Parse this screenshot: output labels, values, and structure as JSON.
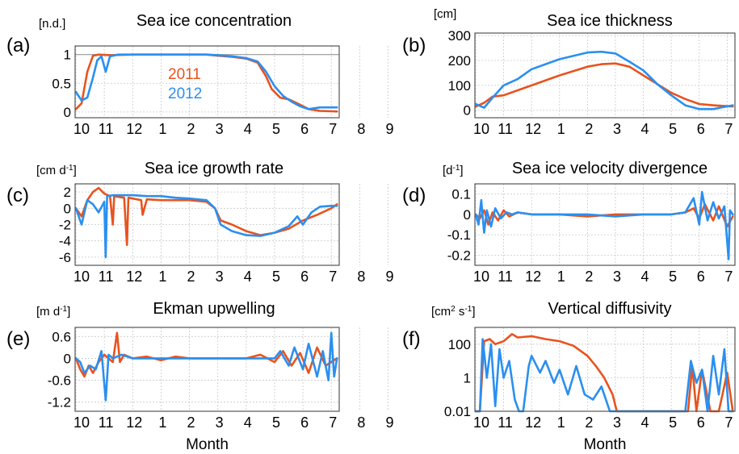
{
  "colors": {
    "y2011": "#e8531e",
    "y2012": "#2a8ff0",
    "grid": "#c8c8c8",
    "frame": "#555555"
  },
  "xlabel": "Month",
  "months": [
    "10",
    "11",
    "12",
    "1",
    "2",
    "3",
    "4",
    "5",
    "6",
    "7",
    "8",
    "9"
  ],
  "chart_data": [
    {
      "id": "a",
      "type": "line",
      "panel_label": "(a)",
      "unit": "[n.d.]",
      "title": "Sea ice concentration",
      "ylim": [
        -0.1,
        1.15
      ],
      "yticks": [
        "1",
        "0.5",
        "0"
      ],
      "ytick_values": [
        1,
        0.5,
        0
      ],
      "ref_line": 1,
      "legend": [
        "2011",
        "2012"
      ],
      "xlabel": "",
      "series": [
        {
          "name": "2011",
          "x": [
            0,
            0.2,
            0.4,
            0.6,
            0.8,
            1.2,
            2,
            3,
            4,
            4.6,
            5,
            5.5,
            6,
            6.4,
            6.7,
            6.9,
            7.2,
            7.5,
            7.8,
            8.2,
            8.6,
            9.2
          ],
          "values": [
            0.05,
            0.15,
            0.7,
            0.98,
            1,
            0.99,
            1,
            1,
            1,
            1,
            0.98,
            0.96,
            0.93,
            0.86,
            0.62,
            0.4,
            0.25,
            0.22,
            0.15,
            0.05,
            0.02,
            0.01
          ]
        },
        {
          "name": "2012",
          "x": [
            0,
            0.2,
            0.4,
            0.6,
            0.75,
            0.9,
            1.05,
            1.2,
            1.5,
            2,
            3,
            4,
            4.6,
            5,
            5.5,
            6,
            6.4,
            6.7,
            7,
            7.3,
            7.6,
            7.9,
            8.2,
            8.6,
            9.2
          ],
          "values": [
            0.35,
            0.2,
            0.25,
            0.6,
            0.9,
            0.97,
            0.7,
            0.97,
            1,
            1,
            1,
            1,
            1,
            0.99,
            0.97,
            0.94,
            0.88,
            0.7,
            0.45,
            0.28,
            0.18,
            0.1,
            0.05,
            0.08,
            0.08
          ]
        }
      ]
    },
    {
      "id": "b",
      "type": "line",
      "panel_label": "(b)",
      "unit": "[cm]",
      "title": "Sea ice thickness",
      "ylim": [
        -30,
        310
      ],
      "yticks": [
        "300",
        "200",
        "100",
        "0"
      ],
      "ytick_values": [
        300,
        200,
        100,
        0
      ],
      "xlabel": "",
      "series": [
        {
          "name": "2011",
          "x": [
            0,
            0.3,
            0.6,
            1,
            1.5,
            2,
            3,
            4,
            4.5,
            5,
            5.5,
            6,
            6.5,
            7,
            7.5,
            8,
            8.5,
            9.2
          ],
          "values": [
            15,
            30,
            55,
            60,
            80,
            100,
            140,
            175,
            185,
            188,
            175,
            140,
            105,
            70,
            45,
            25,
            20,
            15
          ]
        },
        {
          "name": "2012",
          "x": [
            0,
            0.3,
            0.6,
            1,
            1.5,
            2,
            3,
            4,
            4.5,
            5,
            5.5,
            6,
            6.5,
            7,
            7.5,
            8,
            8.5,
            9.2
          ],
          "values": [
            25,
            10,
            50,
            100,
            125,
            165,
            205,
            232,
            235,
            228,
            195,
            160,
            105,
            60,
            20,
            5,
            5,
            20
          ]
        }
      ]
    },
    {
      "id": "c",
      "type": "line",
      "panel_label": "(c)",
      "unit": "[cm d-1]",
      "title": "Sea ice growth rate",
      "ylim": [
        -7,
        3
      ],
      "yticks": [
        "2",
        "0",
        "-2",
        "-4",
        "-6"
      ],
      "ytick_values": [
        2,
        0,
        -2,
        -4,
        -6
      ],
      "xlabel": "",
      "series": [
        {
          "name": "2011",
          "x": [
            0,
            0.2,
            0.4,
            0.6,
            0.8,
            1,
            1.2,
            1.3,
            1.35,
            1.5,
            1.7,
            1.8,
            1.85,
            2,
            2.3,
            2.35,
            2.5,
            3,
            4,
            4.6,
            4.9,
            5.1,
            5.5,
            6,
            6.5,
            7,
            7.5,
            8,
            8.5,
            9,
            9.2
          ],
          "values": [
            0,
            -1,
            1,
            2,
            2.5,
            1.8,
            1.5,
            -2,
            1.5,
            1.4,
            1.3,
            -4.5,
            1.3,
            1.2,
            1,
            -0.8,
            1.1,
            1,
            1,
            0.8,
            0,
            -1.5,
            -2,
            -2.8,
            -3.3,
            -3,
            -2.5,
            -1.5,
            -0.8,
            0,
            0.5
          ]
        },
        {
          "name": "2012",
          "x": [
            0,
            0.2,
            0.4,
            0.6,
            0.8,
            1,
            1.05,
            1.1,
            1.3,
            1.5,
            2,
            2.5,
            3,
            3.5,
            4,
            4.6,
            4.9,
            5.1,
            5.5,
            6,
            6.5,
            7,
            7.5,
            7.8,
            8,
            8.3,
            8.6,
            9,
            9.2
          ],
          "values": [
            0,
            -2,
            1,
            0.5,
            -0.5,
            0.8,
            -6,
            1.5,
            1.6,
            1.6,
            1.6,
            1.5,
            1.5,
            1.3,
            1.2,
            1,
            0,
            -2,
            -2.8,
            -3.3,
            -3.4,
            -3,
            -2.2,
            -1,
            -2,
            -0.5,
            0.2,
            0.3,
            0.3
          ]
        }
      ]
    },
    {
      "id": "d",
      "type": "line",
      "panel_label": "(d)",
      "unit": "[d-1]",
      "title": "Sea ice velocity divergence",
      "ylim": [
        -0.25,
        0.15
      ],
      "yticks": [
        "0.1",
        "0",
        "-0.1",
        "-0.2"
      ],
      "ytick_values": [
        0.1,
        0,
        -0.1,
        -0.2
      ],
      "xlabel": "",
      "series": [
        {
          "name": "2011",
          "x": [
            0,
            0.15,
            0.3,
            0.45,
            0.6,
            0.8,
            1,
            1.2,
            1.5,
            2,
            3,
            4,
            5,
            6,
            7,
            7.5,
            7.8,
            8,
            8.2,
            8.5,
            8.7,
            9,
            9.2
          ],
          "values": [
            0,
            -0.02,
            0.02,
            -0.05,
            0.01,
            -0.03,
            0.02,
            -0.01,
            0.01,
            0,
            0,
            -0.01,
            0,
            0,
            0,
            0.01,
            0.03,
            -0.02,
            0.05,
            -0.03,
            0.04,
            -0.06,
            -0.01
          ]
        },
        {
          "name": "2012",
          "x": [
            0,
            0.1,
            0.2,
            0.3,
            0.4,
            0.55,
            0.7,
            0.9,
            1.1,
            1.3,
            1.5,
            2,
            3,
            4,
            5,
            6,
            7,
            7.5,
            7.8,
            8,
            8.1,
            8.3,
            8.5,
            8.7,
            8.9,
            9.05,
            9.1,
            9.2
          ],
          "values": [
            0,
            -0.05,
            0.07,
            -0.09,
            0.02,
            -0.06,
            0.03,
            -0.02,
            0.01,
            0,
            0.01,
            0,
            0,
            0,
            -0.01,
            0,
            0,
            0.01,
            0.08,
            -0.05,
            0.11,
            -0.03,
            0.06,
            -0.02,
            0.04,
            -0.22,
            0.02,
            0
          ]
        }
      ]
    },
    {
      "id": "e",
      "type": "line",
      "panel_label": "(e)",
      "unit": "[m d-1]",
      "title": "Ekman upwelling",
      "ylim": [
        -1.45,
        0.85
      ],
      "yticks": [
        "0.6",
        "0",
        "-0.6",
        "-1.2"
      ],
      "ytick_values": [
        0.6,
        0,
        -0.6,
        -1.2
      ],
      "xlabel": "Month",
      "series": [
        {
          "name": "2011",
          "x": [
            0,
            0.15,
            0.3,
            0.45,
            0.6,
            0.8,
            1,
            1.3,
            1.45,
            1.55,
            1.7,
            2,
            2.5,
            3,
            3.5,
            4,
            5,
            6,
            6.5,
            7,
            7.3,
            7.6,
            7.9,
            8.2,
            8.5,
            8.8,
            9.2
          ],
          "values": [
            0,
            -0.3,
            -0.5,
            -0.2,
            -0.4,
            -0.1,
            0.1,
            -0.1,
            0.7,
            -0.1,
            0.1,
            0,
            0.05,
            -0.05,
            0.05,
            0,
            0,
            0,
            0.1,
            -0.1,
            0.2,
            -0.2,
            0.15,
            -0.4,
            0.3,
            -0.2,
            0
          ]
        },
        {
          "name": "2012",
          "x": [
            0,
            0.15,
            0.3,
            0.5,
            0.7,
            0.9,
            1.05,
            1.15,
            1.3,
            1.6,
            2,
            2.5,
            3,
            3.5,
            4,
            5,
            6,
            7,
            7.2,
            7.5,
            7.7,
            8,
            8.2,
            8.5,
            8.7,
            8.9,
            9,
            9.1,
            9.2
          ],
          "values": [
            0,
            -0.1,
            -0.4,
            -0.2,
            -0.3,
            0.2,
            -1.15,
            0.1,
            0,
            0.1,
            0,
            0,
            0,
            0,
            0,
            0,
            0,
            0,
            0.2,
            -0.2,
            0.3,
            -0.3,
            0.4,
            -0.5,
            0.2,
            -0.6,
            0.7,
            -0.5,
            0
          ]
        }
      ]
    },
    {
      "id": "f",
      "type": "line",
      "yscale": "log",
      "panel_label": "(f)",
      "unit": "[cm2 s-1]",
      "title": "Vertical diffusivity",
      "ylim": [
        0.01,
        1000
      ],
      "yticks": [
        "100",
        "1",
        "0.01"
      ],
      "ytick_values": [
        100,
        1,
        0.01
      ],
      "xlabel": "Month",
      "series": [
        {
          "name": "2011",
          "x": [
            0,
            0.15,
            0.3,
            0.5,
            0.7,
            1,
            1.3,
            1.5,
            2,
            2.5,
            3,
            3.5,
            4,
            4.3,
            4.6,
            4.9,
            5.05,
            6,
            7,
            7.6,
            7.75,
            7.9,
            8.1,
            8.4,
            8.7,
            9,
            9.2
          ],
          "values": [
            0.01,
            0.01,
            150,
            200,
            100,
            150,
            400,
            250,
            300,
            200,
            150,
            80,
            20,
            5,
            1,
            0.1,
            0.01,
            0.01,
            0.01,
            0.01,
            5,
            0.01,
            3,
            0.01,
            0.01,
            2,
            0.01
          ]
        },
        {
          "name": "2012",
          "x": [
            0,
            0.15,
            0.25,
            0.4,
            0.55,
            0.7,
            0.85,
            1,
            1.2,
            1.4,
            1.55,
            1.7,
            1.9,
            2,
            2.3,
            2.5,
            2.8,
            3,
            3.3,
            3.6,
            3.9,
            4.2,
            4.5,
            4.8,
            5.1,
            6,
            7,
            7.5,
            7.7,
            7.9,
            8.1,
            8.3,
            8.5,
            8.7,
            8.9,
            9.05,
            9.2
          ],
          "values": [
            0.01,
            0.01,
            200,
            1,
            100,
            0.02,
            50,
            1,
            10,
            0.05,
            0.01,
            0.01,
            5,
            20,
            2,
            10,
            0.5,
            3,
            0.1,
            5,
            0.1,
            0.05,
            0.3,
            0.01,
            0.01,
            0.01,
            0.01,
            0.01,
            10,
            0.5,
            3,
            0.01,
            20,
            0.1,
            50,
            0.01,
            0.01
          ]
        }
      ]
    }
  ]
}
